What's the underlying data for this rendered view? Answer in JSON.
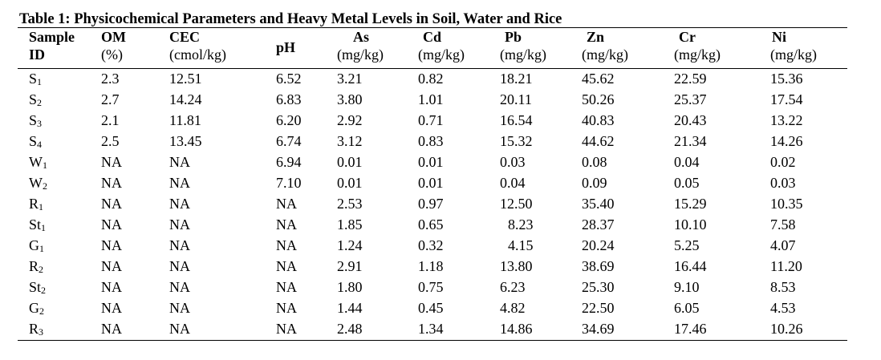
{
  "table": {
    "caption": "Table 1: Physicochemical Parameters and Heavy Metal Levels in Soil, Water and Rice",
    "headers": [
      {
        "top": "Sample",
        "bottom": "ID"
      },
      {
        "top": "OM",
        "bottom": "(%)"
      },
      {
        "top": "CEC",
        "bottom": "(cmol/kg)"
      },
      {
        "top": "pH",
        "bottom": ""
      },
      {
        "top": "As",
        "bottom": "(mg/kg)"
      },
      {
        "top": "Cd",
        "bottom": "(mg/kg)"
      },
      {
        "top": "Pb",
        "bottom": "(mg/kg)"
      },
      {
        "top": "Zn",
        "bottom": "(mg/kg)"
      },
      {
        "top": "Cr",
        "bottom": "(mg/kg)"
      },
      {
        "top": "Ni",
        "bottom": "(mg/kg)"
      }
    ],
    "rows": [
      {
        "id": "S",
        "sub": "1",
        "cells": [
          "2.3",
          "12.51",
          "6.52",
          "3.21",
          "0.82",
          "18.21",
          "45.62",
          "22.59",
          "15.36"
        ]
      },
      {
        "id": "S",
        "sub": "2",
        "cells": [
          "2.7",
          "14.24",
          "6.83",
          "3.80",
          "1.01",
          "20.11",
          "50.26",
          "25.37",
          "17.54"
        ]
      },
      {
        "id": "S",
        "sub": "3",
        "cells": [
          "2.1",
          "11.81",
          "6.20",
          "2.92",
          "0.71",
          "16.54",
          "40.83",
          "20.43",
          "13.22"
        ]
      },
      {
        "id": "S",
        "sub": "4",
        "cells": [
          "2.5",
          "13.45",
          "6.74",
          "3.12",
          "0.83",
          "15.32",
          "44.62",
          "21.34",
          "14.26"
        ]
      },
      {
        "id": "W",
        "sub": "1",
        "cells": [
          "NA",
          "NA",
          "6.94",
          "0.01",
          "0.01",
          "0.03",
          "0.08",
          "0.04",
          "0.02"
        ]
      },
      {
        "id": "W",
        "sub": "2",
        "cells": [
          "NA",
          "NA",
          "7.10",
          "0.01",
          "0.01",
          "0.04",
          "0.09",
          "0.05",
          "0.03"
        ]
      },
      {
        "id": "R",
        "sub": "1",
        "cells": [
          "NA",
          "NA",
          "NA",
          "2.53",
          "0.97",
          "12.50",
          "35.40",
          "15.29",
          "10.35"
        ]
      },
      {
        "id": "St",
        "sub": "1",
        "cells": [
          "NA",
          "NA",
          "NA",
          "1.85",
          "0.65",
          "8.23",
          "28.37",
          "10.10",
          "7.58"
        ]
      },
      {
        "id": "G",
        "sub": "1",
        "cells": [
          "NA",
          "NA",
          "NA",
          "1.24",
          "0.32",
          "4.15",
          "20.24",
          "5.25",
          "4.07"
        ]
      },
      {
        "id": "R",
        "sub": "2",
        "cells": [
          "NA",
          "NA",
          "NA",
          "2.91",
          "1.18",
          "13.80",
          "38.69",
          "16.44",
          "11.20"
        ]
      },
      {
        "id": "St",
        "sub": "2",
        "cells": [
          "NA",
          "NA",
          "NA",
          "1.80",
          "0.75",
          "6.23",
          "25.30",
          "9.10",
          "8.53"
        ]
      },
      {
        "id": "G",
        "sub": "2",
        "cells": [
          "NA",
          "NA",
          "NA",
          "1.44",
          "0.45",
          "4.82",
          "22.50",
          "6.05",
          "4.53"
        ]
      },
      {
        "id": "R",
        "sub": "3",
        "cells": [
          "NA",
          "NA",
          "NA",
          "2.48",
          "1.34",
          "14.86",
          "34.69",
          "17.46",
          "10.26"
        ]
      }
    ]
  }
}
